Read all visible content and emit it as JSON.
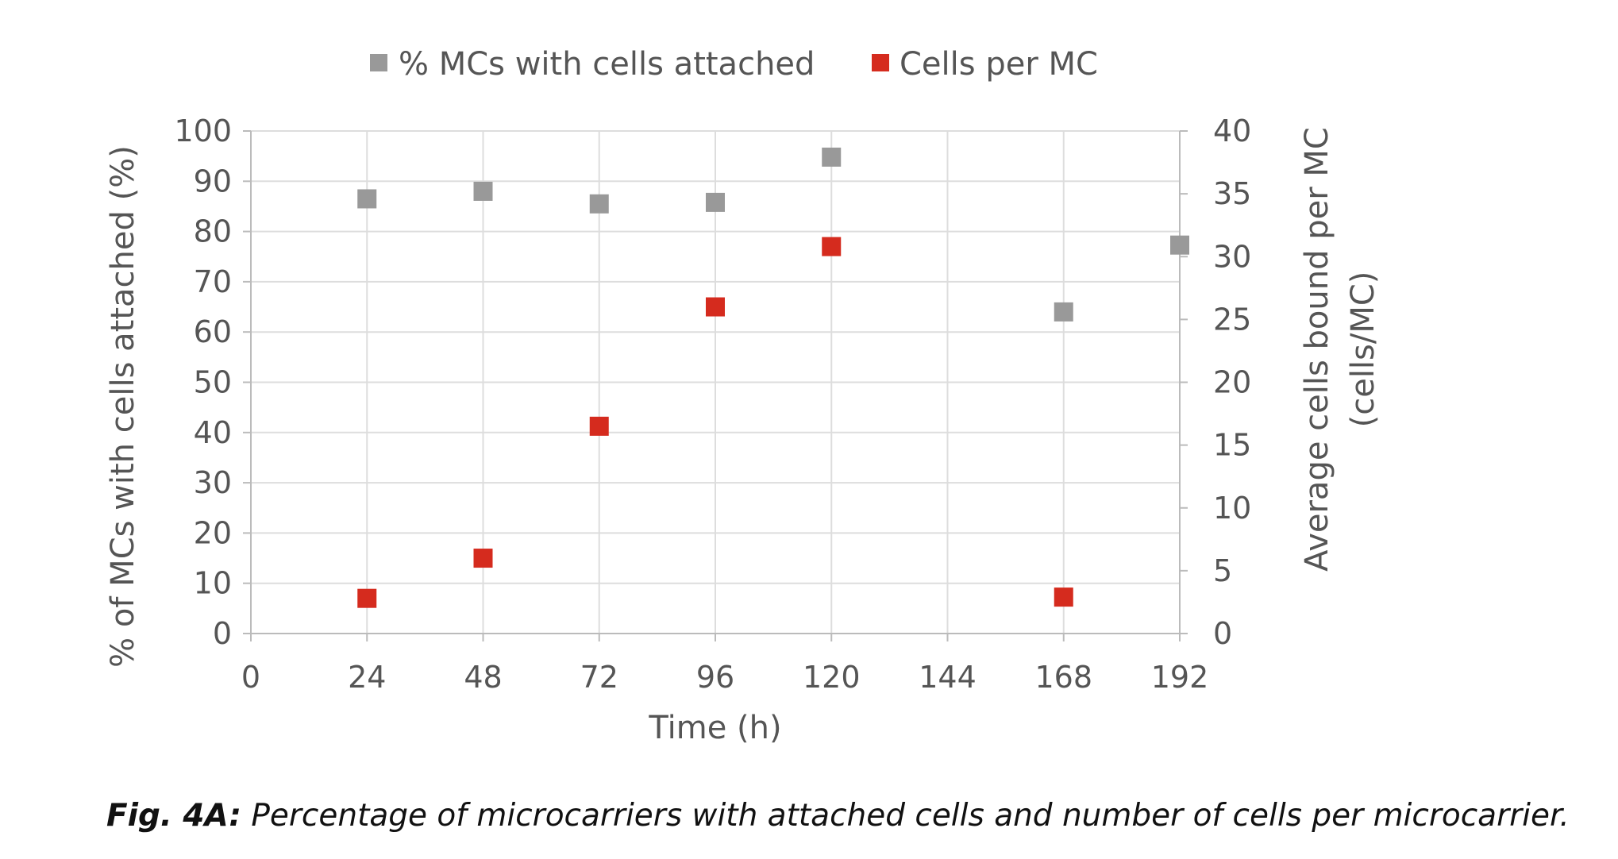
{
  "chart_data": {
    "type": "scatter",
    "x": [
      24,
      48,
      72,
      96,
      120,
      168,
      192
    ],
    "series": [
      {
        "name": "% MCs with cells attached",
        "axis": "left",
        "color": "#999999",
        "points": [
          [
            24,
            86.5
          ],
          [
            48,
            88
          ],
          [
            72,
            85.5
          ],
          [
            96,
            85.8
          ],
          [
            120,
            94.8
          ],
          [
            168,
            64
          ],
          [
            192,
            77.3
          ]
        ]
      },
      {
        "name": "Cells per MC",
        "axis": "right",
        "color": "#d52b1e",
        "points": [
          [
            24,
            2.8
          ],
          [
            48,
            6
          ],
          [
            72,
            16.5
          ],
          [
            96,
            26
          ],
          [
            120,
            30.8
          ],
          [
            168,
            2.9
          ]
        ]
      }
    ],
    "xlabel": "Time (h)",
    "ylabel": "% of MCs with cells attached (%)",
    "y2label_line1": "Average cells bound per MC",
    "y2label_line2": "(cells/MC)",
    "xlim": [
      0,
      192
    ],
    "xticks": [
      "0",
      "24",
      "48",
      "72",
      "96",
      "120",
      "144",
      "168",
      "192"
    ],
    "ylim": [
      0,
      100
    ],
    "yticks": [
      "0",
      "10",
      "20",
      "30",
      "40",
      "50",
      "60",
      "70",
      "80",
      "90",
      "100"
    ],
    "y2lim": [
      0,
      40
    ],
    "y2ticks": [
      "0",
      "5",
      "10",
      "15",
      "20",
      "25",
      "30",
      "35",
      "40"
    ],
    "grid": true,
    "legend": "top-center"
  },
  "caption": {
    "label": "Fig. 4A:",
    "text": " Percentage of microcarriers with attached cells and number of cells per microcarrier."
  }
}
